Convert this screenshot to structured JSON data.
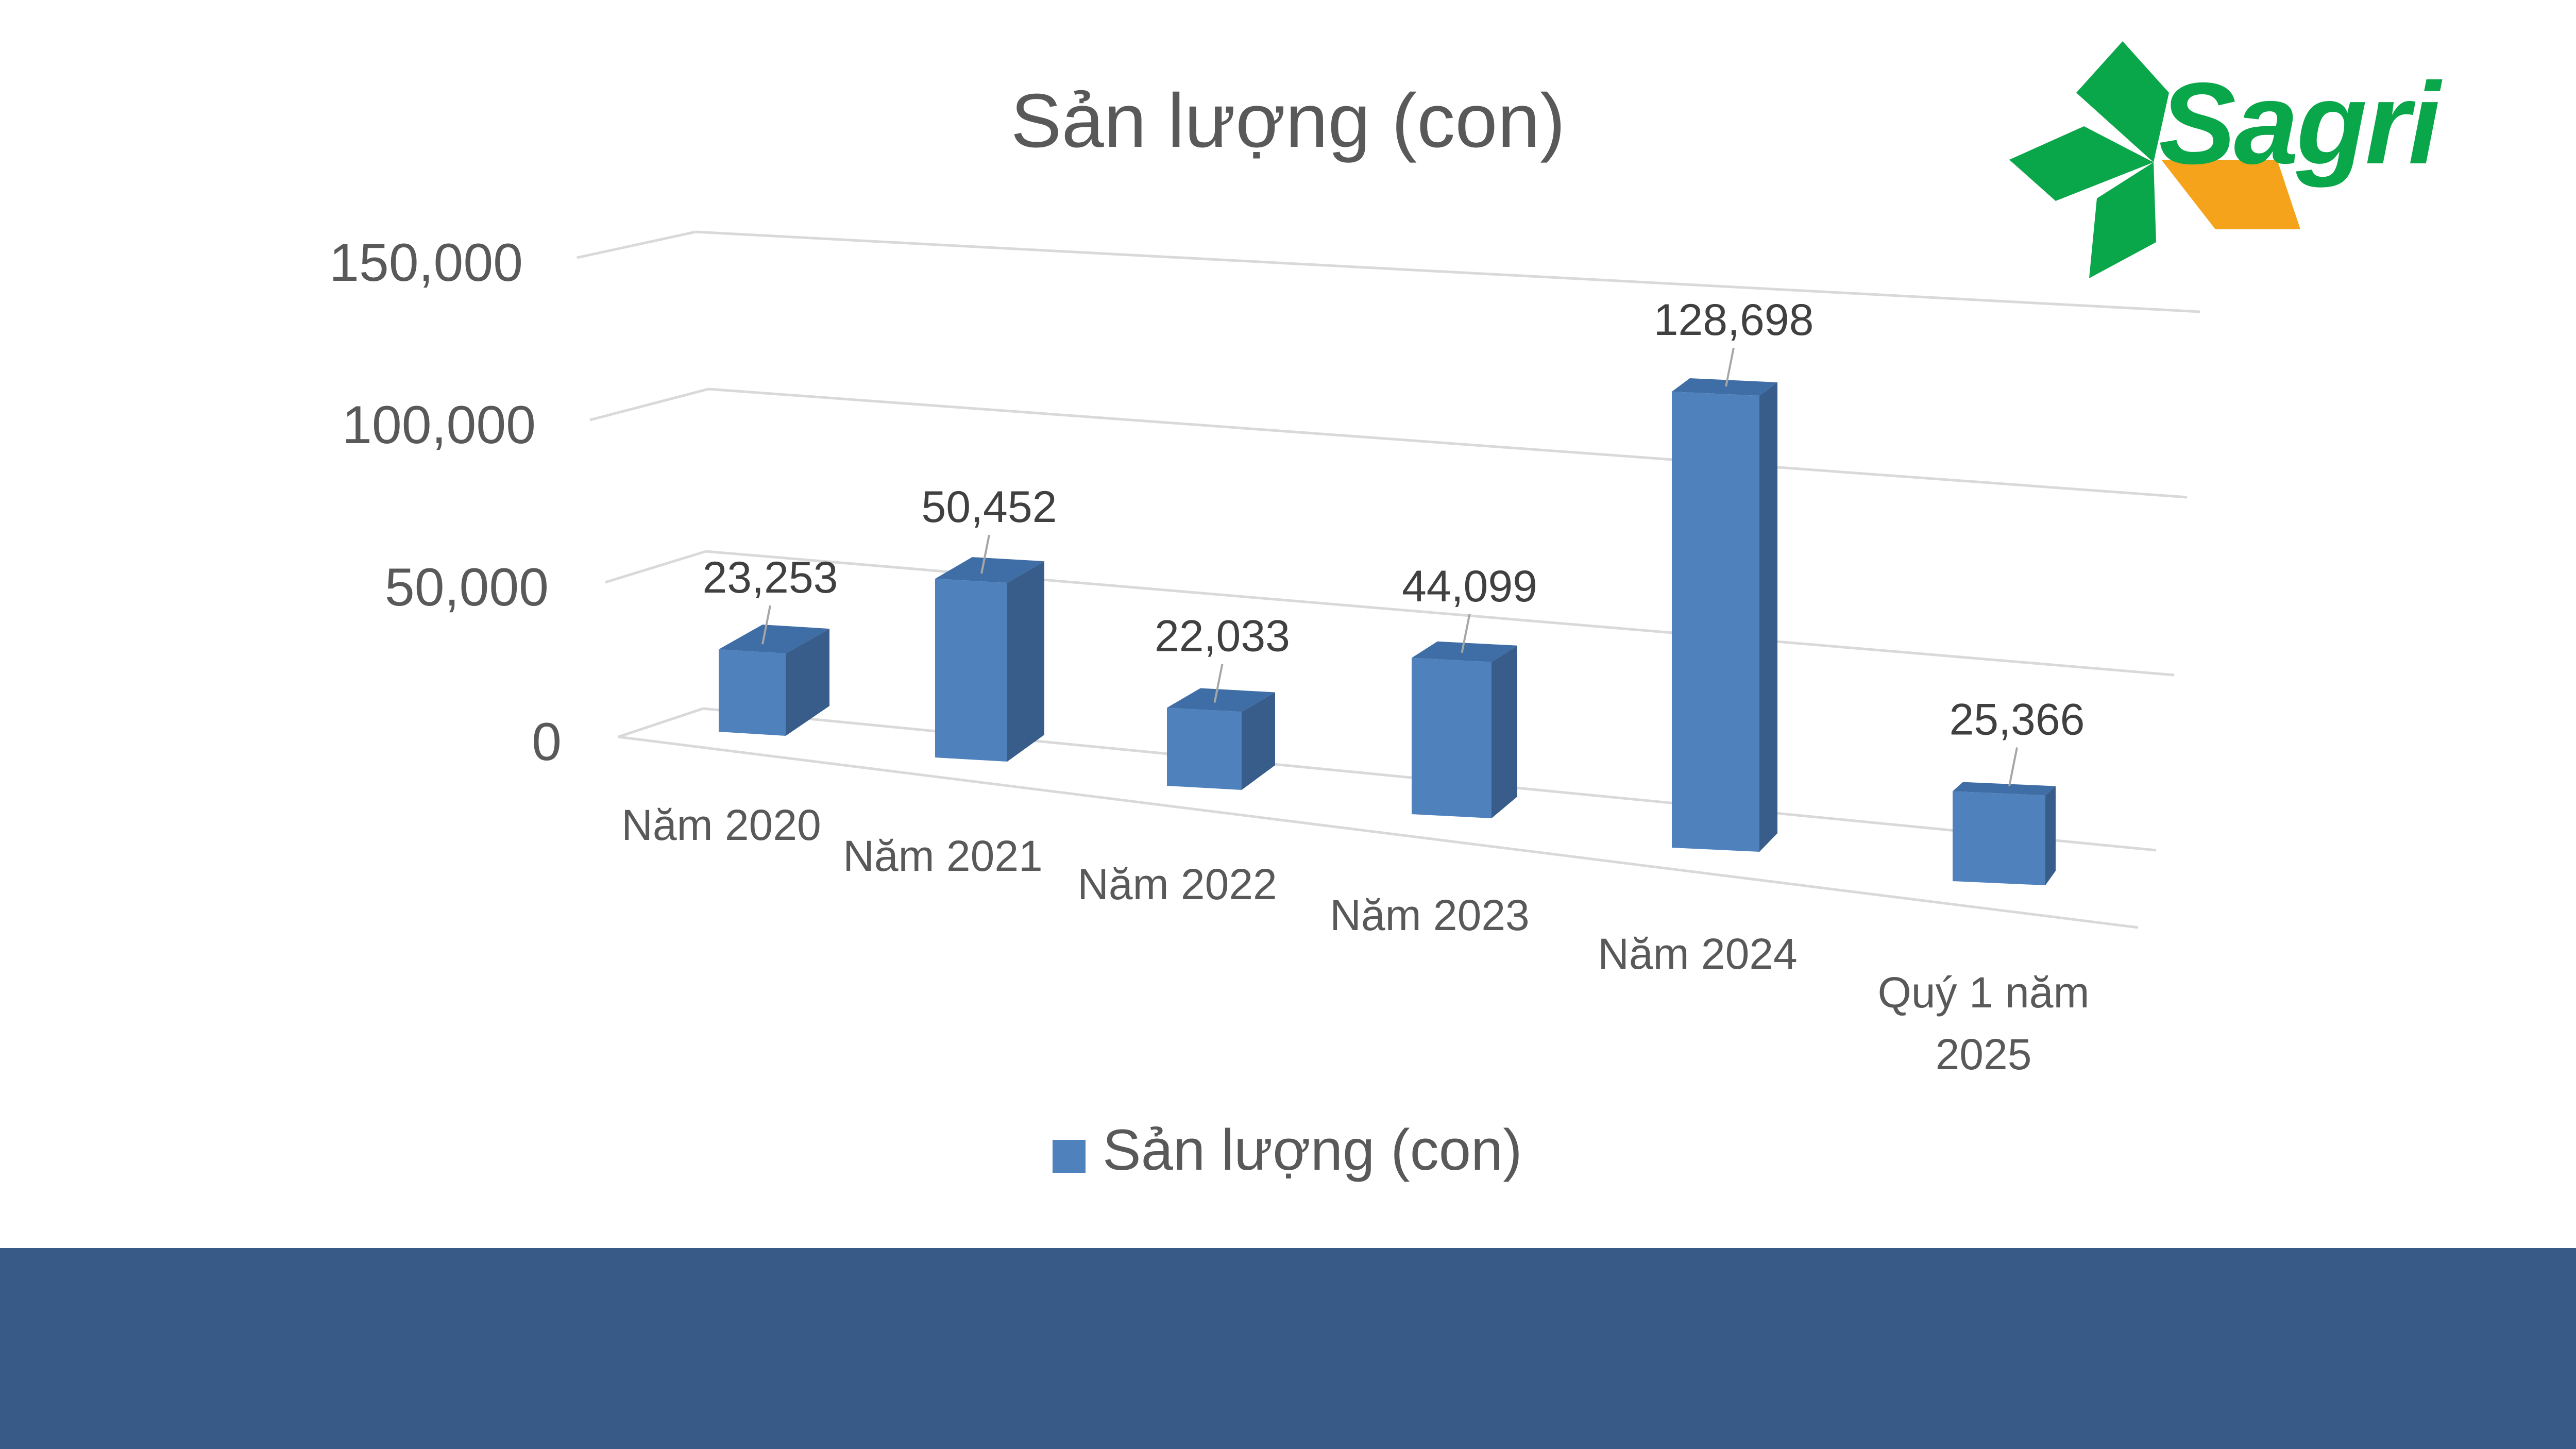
{
  "brand": {
    "name": "Sagri",
    "green": "#0aa64a",
    "orange": "#f5a31a"
  },
  "colors": {
    "bar_front": "#4f81bd",
    "bar_side": "#385d8a",
    "bar_top": "#3f6ea6",
    "footer": "#375a87",
    "text": "#595959",
    "label": "#404040",
    "grid": "#d9d9d9"
  },
  "chart_data": {
    "type": "bar",
    "title": "Sản lượng (con)",
    "categories": [
      "Năm 2020",
      "Năm 2021",
      "Năm 2022",
      "Năm 2023",
      "Năm 2024",
      "Quý 1 năm 2025"
    ],
    "series": [
      {
        "name": "Sản lượng (con)",
        "values": [
          23253,
          50452,
          22033,
          44099,
          128698,
          25366
        ]
      }
    ],
    "data_labels": [
      "23,253",
      "50,452",
      "22,033",
      "44,099",
      "128,698",
      "25,366"
    ],
    "y_ticks": [
      "0",
      "50,000",
      "100,000",
      "150,000"
    ],
    "ylim": [
      0,
      150000
    ],
    "grid": true,
    "legend": "bottom",
    "style": "3d-column"
  }
}
